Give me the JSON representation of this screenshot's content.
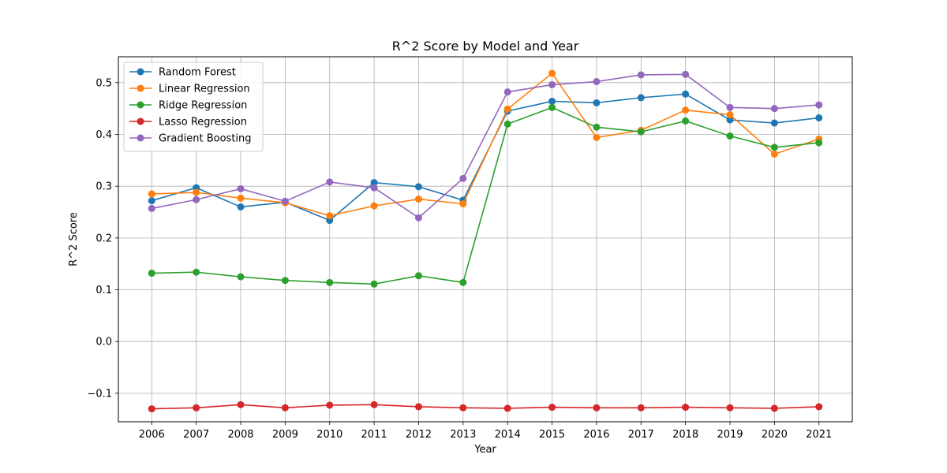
{
  "chart_data": {
    "type": "line",
    "title": "R^2 Score by Model and Year",
    "xlabel": "Year",
    "ylabel": "R^2 Score",
    "ylim": [
      -0.155,
      0.55
    ],
    "yticks": [
      -0.1,
      0.0,
      0.1,
      0.2,
      0.3,
      0.4,
      0.5
    ],
    "ytick_labels": [
      "−0.1",
      "0.0",
      "0.1",
      "0.2",
      "0.3",
      "0.4",
      "0.5"
    ],
    "grid": true,
    "legend_position": "top-left",
    "categories": [
      "2006",
      "2007",
      "2008",
      "2009",
      "2010",
      "2011",
      "2012",
      "2013",
      "2014",
      "2015",
      "2016",
      "2017",
      "2018",
      "2019",
      "2020",
      "2021"
    ],
    "series": [
      {
        "name": "Random Forest",
        "color": "#1f77b4",
        "values": [
          0.272,
          0.297,
          0.26,
          0.269,
          0.234,
          0.307,
          0.299,
          0.273,
          0.445,
          0.464,
          0.461,
          0.471,
          0.478,
          0.428,
          0.422,
          0.432
        ]
      },
      {
        "name": "Linear Regression",
        "color": "#ff7f0e",
        "values": [
          0.285,
          0.288,
          0.277,
          0.268,
          0.243,
          0.262,
          0.275,
          0.266,
          0.449,
          0.518,
          0.394,
          0.408,
          0.447,
          0.438,
          0.362,
          0.391
        ]
      },
      {
        "name": "Ridge Regression",
        "color": "#2ca02c",
        "values": [
          0.132,
          0.134,
          0.125,
          0.118,
          0.114,
          0.111,
          0.127,
          0.114,
          0.42,
          0.452,
          0.414,
          0.405,
          0.426,
          0.397,
          0.375,
          0.384
        ]
      },
      {
        "name": "Lasso Regression",
        "color": "#d62728",
        "values": [
          -0.13,
          -0.128,
          -0.122,
          -0.128,
          -0.123,
          -0.122,
          -0.126,
          -0.128,
          -0.129,
          -0.127,
          -0.128,
          -0.128,
          -0.127,
          -0.128,
          -0.129,
          -0.126
        ]
      },
      {
        "name": "Gradient Boosting",
        "color": "#9467bd",
        "values": [
          0.257,
          0.274,
          0.295,
          0.271,
          0.308,
          0.297,
          0.239,
          0.315,
          0.482,
          0.496,
          0.502,
          0.515,
          0.516,
          0.452,
          0.45,
          0.457
        ]
      }
    ]
  }
}
